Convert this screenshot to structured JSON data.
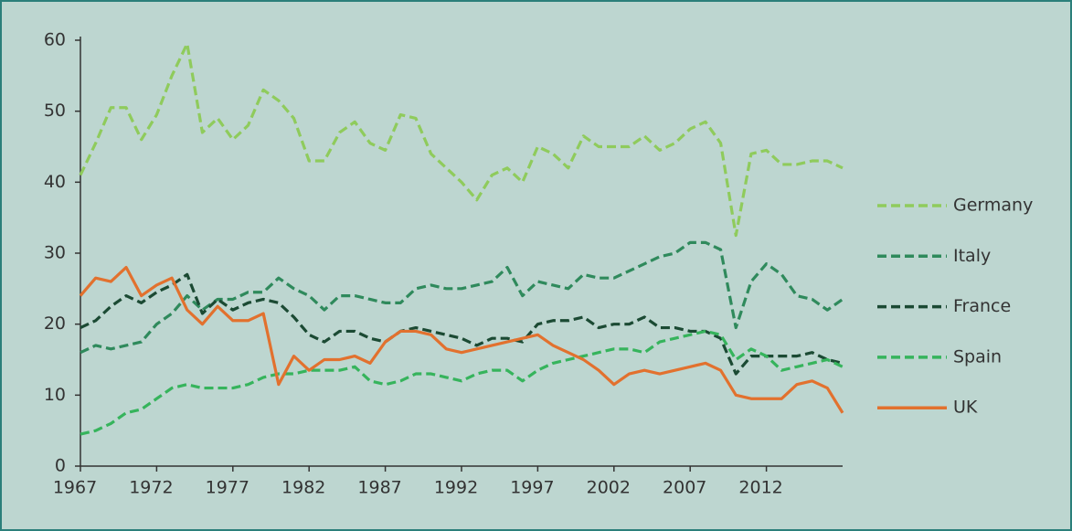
{
  "chart_data": {
    "type": "line",
    "x": [
      1967,
      1968,
      1969,
      1970,
      1971,
      1972,
      1973,
      1974,
      1975,
      1976,
      1977,
      1978,
      1979,
      1980,
      1981,
      1982,
      1983,
      1984,
      1985,
      1986,
      1987,
      1988,
      1989,
      1990,
      1991,
      1992,
      1993,
      1994,
      1995,
      1996,
      1997,
      1998,
      1999,
      2000,
      2001,
      2002,
      2003,
      2004,
      2005,
      2006,
      2007,
      2008,
      2009,
      2010,
      2011,
      2012,
      2013,
      2014,
      2015,
      2016,
      2017
    ],
    "xlim": [
      1967,
      2017
    ],
    "xticks": [
      1967,
      1972,
      1977,
      1982,
      1987,
      1992,
      1997,
      2002,
      2007,
      2012
    ],
    "ylim": [
      0,
      60
    ],
    "yticks": [
      0,
      10,
      20,
      30,
      40,
      50,
      60
    ],
    "legend": "right",
    "series": [
      {
        "name": "Germany",
        "color": "#8fcb5c",
        "dashed": true,
        "values": [
          41,
          45.5,
          50.5,
          50.5,
          46,
          49.5,
          55,
          59.5,
          47,
          49,
          46,
          48,
          53,
          51.5,
          49,
          43,
          43,
          47,
          48.5,
          45.5,
          44.5,
          49.5,
          49,
          44,
          42,
          40,
          37.5,
          41,
          42,
          40,
          45,
          44,
          42,
          46.5,
          45,
          45,
          45,
          46.5,
          44.5,
          45.5,
          47.5,
          48.5,
          45.5,
          32.5,
          44,
          44.5,
          42.5,
          42.5,
          43,
          43,
          42
        ]
      },
      {
        "name": "Italy",
        "color": "#2f8a5c",
        "dashed": true,
        "values": [
          16,
          17,
          16.5,
          17,
          17.5,
          20,
          21.5,
          24,
          22,
          23.5,
          23.5,
          24.5,
          24.5,
          26.5,
          25,
          24,
          22,
          24,
          24,
          23.5,
          23,
          23,
          25,
          25.5,
          25,
          25,
          25.5,
          26,
          28,
          24,
          26,
          25.5,
          25,
          27,
          26.5,
          26.5,
          27.5,
          28.5,
          29.5,
          30,
          31.5,
          31.5,
          30.5,
          19.5,
          26,
          28.5,
          27,
          24,
          23.5,
          22,
          23.5
        ]
      },
      {
        "name": "France",
        "color": "#1b4a33",
        "dashed": true,
        "values": [
          19.5,
          20.5,
          22.5,
          24,
          23,
          24.5,
          25.5,
          27,
          21.5,
          23.5,
          22,
          23,
          23.5,
          23,
          21,
          18.5,
          17.5,
          19,
          19,
          18,
          17.5,
          19,
          19.5,
          19,
          18.5,
          18,
          17,
          18,
          18,
          17.5,
          20,
          20.5,
          20.5,
          21,
          19.5,
          20,
          20,
          21,
          19.5,
          19.5,
          19,
          19,
          18,
          13,
          15.5,
          15.5,
          15.5,
          15.5,
          16,
          15,
          14.5
        ]
      },
      {
        "name": "Spain",
        "color": "#36b45c",
        "dashed": true,
        "values": [
          4.5,
          5,
          6,
          7.5,
          8,
          9.5,
          11,
          11.5,
          11,
          11,
          11,
          11.5,
          12.5,
          13,
          13,
          13.5,
          13.5,
          13.5,
          14,
          12,
          11.5,
          12,
          13,
          13,
          12.5,
          12,
          13,
          13.5,
          13.5,
          12,
          13.5,
          14.5,
          15,
          15.5,
          16,
          16.5,
          16.5,
          16,
          17.5,
          18,
          18.5,
          19,
          18.5,
          15,
          16.5,
          15.5,
          13.5,
          14,
          14.5,
          15,
          14
        ]
      },
      {
        "name": "UK",
        "color": "#e2712e",
        "dashed": false,
        "values": [
          24,
          26.5,
          26,
          28,
          24,
          25.5,
          26.5,
          22,
          20,
          22.5,
          20.5,
          20.5,
          21.5,
          11.5,
          15.5,
          13.5,
          15,
          15,
          15.5,
          14.5,
          17.5,
          19,
          19,
          18.5,
          16.5,
          16,
          16.5,
          17,
          17.5,
          18,
          18.5,
          17,
          16,
          15,
          13.5,
          11.5,
          13,
          13.5,
          13,
          13.5,
          14,
          14.5,
          13.5,
          10,
          9.5,
          9.5,
          9.5,
          11.5,
          12,
          11,
          7.5
        ]
      }
    ]
  }
}
